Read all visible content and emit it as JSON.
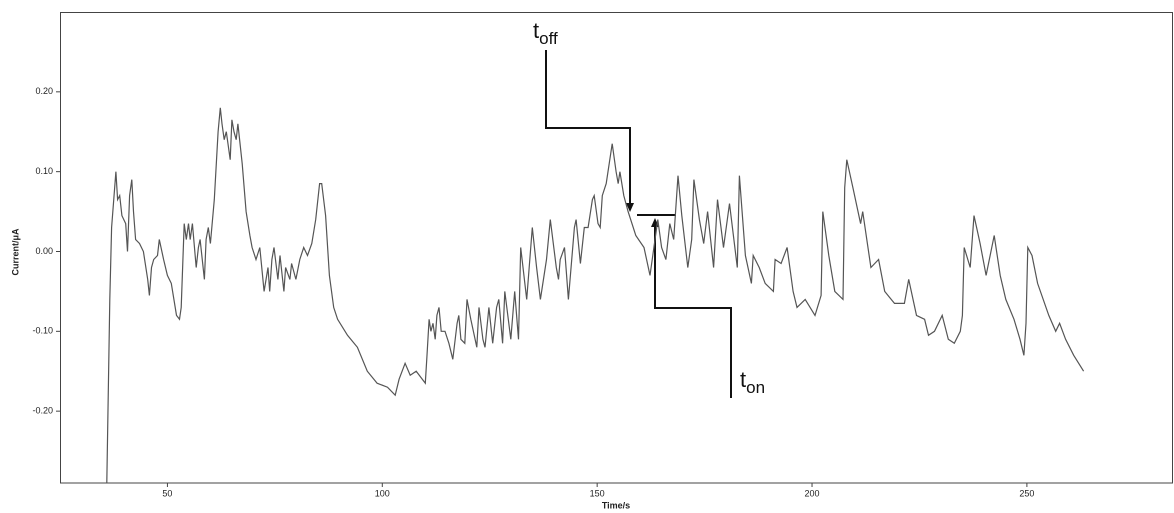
{
  "chart_data": {
    "type": "line",
    "x_label": "Time/s",
    "y_label": "Current/μA",
    "color": "#555555",
    "xlim": [
      25,
      284
    ],
    "ylim": [
      -0.29,
      0.3
    ],
    "xticks": [
      50,
      100,
      150,
      200,
      250
    ],
    "yticks": [
      {
        "value": 0.2,
        "label": "0.20"
      },
      {
        "value": 0.1,
        "label": "0.10"
      },
      {
        "value": 0,
        "label": "0.00"
      },
      {
        "value": -0.1,
        "label": "-0.10"
      },
      {
        "value": -0.2,
        "label": "-0.20"
      }
    ],
    "annotations": [
      {
        "text": "t",
        "subscript": "off"
      },
      {
        "text": "t",
        "subscript": "on"
      }
    ],
    "x": [
      35.9,
      36.6,
      37.0,
      38.0,
      38.4,
      38.9,
      39.4,
      40.3,
      40.7,
      41.2,
      41.7,
      42.1,
      42.6,
      43.5,
      44.4,
      45.4,
      45.8,
      46.3,
      46.8,
      47.7,
      48.1,
      49.1,
      50.0,
      50.9,
      52.1,
      52.8,
      53.2,
      53.9,
      54.4,
      54.9,
      55.3,
      55.8,
      56.7,
      57.2,
      57.6,
      58.6,
      59.0,
      59.5,
      60.0,
      60.9,
      61.8,
      62.3,
      62.7,
      63.2,
      63.7,
      64.6,
      65.0,
      65.5,
      66.0,
      66.4,
      67.4,
      68.3,
      69.2,
      69.7,
      70.6,
      71.5,
      72.5,
      73.4,
      73.8,
      74.3,
      74.8,
      75.7,
      76.2,
      77.1,
      77.5,
      78.5,
      78.9,
      79.9,
      80.8,
      81.7,
      82.6,
      83.6,
      84.5,
      85.4,
      85.9,
      86.8,
      87.7,
      88.7,
      89.6,
      91.9,
      94.2,
      96.5,
      98.8,
      101.2,
      103.0,
      103.9,
      105.3,
      106.5,
      107.9,
      110.0,
      110.4,
      110.9,
      111.3,
      111.8,
      112.3,
      112.7,
      113.2,
      113.7,
      114.6,
      115.5,
      116.4,
      117.4,
      117.8,
      118.3,
      119.2,
      119.7,
      120.6,
      122.0,
      122.5,
      123.4,
      123.9,
      124.8,
      125.7,
      126.6,
      127.1,
      128.0,
      128.5,
      129.9,
      130.8,
      131.7,
      132.2,
      133.6,
      134.9,
      135.9,
      136.8,
      138.2,
      139.1,
      140.5,
      141.0,
      141.4,
      142.4,
      143.3,
      144.7,
      145.1,
      146.1,
      147.0,
      147.9,
      148.9,
      149.3,
      150.2,
      150.7,
      151.2,
      152.1,
      153.5,
      154.4,
      154.9,
      155.3,
      156.2,
      157.2,
      159.0,
      160.9,
      162.3,
      163.2,
      164.1,
      165.0,
      166.0,
      166.9,
      167.8,
      168.8,
      169.7,
      171.1,
      172.0,
      172.5,
      173.8,
      174.8,
      175.7,
      177.1,
      178.0,
      179.4,
      180.8,
      182.6,
      183.1,
      184.5,
      185.9,
      186.3,
      187.7,
      189.1,
      191.0,
      191.4,
      192.8,
      194.2,
      195.6,
      196.5,
      198.4,
      200.7,
      202.1,
      202.5,
      203.9,
      205.3,
      207.2,
      207.6,
      208.1,
      209.5,
      211.3,
      211.8,
      213.7,
      215.5,
      216.9,
      219.2,
      221.5,
      222.5,
      224.3,
      226.2,
      227.1,
      228.5,
      230.3,
      231.7,
      233.1,
      234.5,
      235.0,
      235.4,
      236.8,
      237.7,
      239.1,
      240.5,
      242.4,
      243.8,
      245.1,
      247.0,
      248.4,
      249.3,
      249.8,
      250.2,
      251.2,
      252.5,
      255.1,
      256.7,
      257.6,
      259.0,
      260.9,
      263.2
    ],
    "values": [
      -0.29,
      -0.06,
      0.03,
      0.1,
      0.065,
      0.07,
      0.045,
      0.035,
      0.0,
      0.07,
      0.09,
      0.05,
      0.015,
      0.01,
      0.0,
      -0.035,
      -0.055,
      -0.02,
      -0.01,
      -0.005,
      0.015,
      -0.01,
      -0.03,
      -0.04,
      -0.08,
      -0.085,
      -0.07,
      0.035,
      0.015,
      0.035,
      0.015,
      0.035,
      -0.02,
      0.005,
      0.015,
      -0.035,
      0.015,
      0.03,
      0.01,
      0.065,
      0.15,
      0.18,
      0.16,
      0.14,
      0.15,
      0.115,
      0.165,
      0.15,
      0.14,
      0.16,
      0.11,
      0.05,
      0.02,
      0.005,
      -0.01,
      0.005,
      -0.05,
      -0.02,
      -0.05,
      -0.01,
      0.005,
      -0.035,
      -0.005,
      -0.05,
      -0.02,
      -0.035,
      -0.015,
      -0.035,
      -0.01,
      0.005,
      -0.005,
      0.01,
      0.04,
      0.085,
      0.085,
      0.045,
      -0.03,
      -0.07,
      -0.085,
      -0.105,
      -0.12,
      -0.15,
      -0.165,
      -0.17,
      -0.18,
      -0.16,
      -0.14,
      -0.155,
      -0.15,
      -0.165,
      -0.13,
      -0.085,
      -0.1,
      -0.09,
      -0.11,
      -0.08,
      -0.07,
      -0.1,
      -0.1,
      -0.115,
      -0.135,
      -0.09,
      -0.08,
      -0.11,
      -0.115,
      -0.06,
      -0.085,
      -0.12,
      -0.07,
      -0.11,
      -0.12,
      -0.07,
      -0.115,
      -0.07,
      -0.06,
      -0.115,
      -0.05,
      -0.11,
      -0.05,
      -0.11,
      0.005,
      -0.06,
      0.03,
      -0.02,
      -0.06,
      -0.01,
      0.04,
      -0.02,
      -0.035,
      -0.01,
      0.005,
      -0.06,
      0.03,
      0.04,
      -0.015,
      0.03,
      0.03,
      0.065,
      0.07,
      0.035,
      0.03,
      0.07,
      0.085,
      0.135,
      0.1,
      0.085,
      0.1,
      0.07,
      0.05,
      0.02,
      0.005,
      -0.03,
      0.005,
      0.04,
      0.005,
      -0.01,
      0.035,
      0.015,
      0.095,
      0.045,
      -0.02,
      0.015,
      0.09,
      0.04,
      0.01,
      0.05,
      -0.02,
      0.065,
      0.005,
      0.06,
      -0.02,
      0.095,
      -0.005,
      -0.04,
      -0.005,
      -0.02,
      -0.04,
      -0.05,
      -0.01,
      -0.015,
      0.005,
      -0.05,
      -0.07,
      -0.06,
      -0.08,
      -0.055,
      0.05,
      -0.005,
      -0.05,
      -0.06,
      0.08,
      0.115,
      0.08,
      0.035,
      0.05,
      -0.02,
      -0.01,
      -0.05,
      -0.065,
      -0.065,
      -0.035,
      -0.08,
      -0.085,
      -0.105,
      -0.1,
      -0.08,
      -0.11,
      -0.115,
      -0.1,
      -0.08,
      0.005,
      -0.02,
      0.045,
      0.01,
      -0.03,
      0.02,
      -0.03,
      -0.06,
      -0.085,
      -0.11,
      -0.13,
      -0.09,
      0.005,
      -0.005,
      -0.04,
      -0.08,
      -0.1,
      -0.09,
      -0.11,
      -0.13,
      -0.15
    ]
  }
}
